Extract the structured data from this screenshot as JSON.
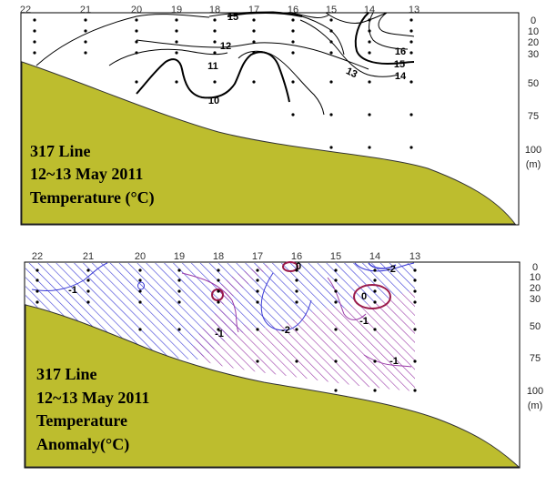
{
  "chart_data": [
    {
      "type": "contour",
      "panel": "temperature",
      "title_lines": [
        "317 Line",
        "12~13 May 2011",
        "Temperature (°C)"
      ],
      "stations": [
        "22",
        "21",
        "20",
        "19",
        "18",
        "17",
        "16",
        "15",
        "14",
        "13"
      ],
      "depth_ticks": [
        "0",
        "10",
        "20",
        "30",
        "50",
        "75",
        "100"
      ],
      "depth_unit": "(m)",
      "contour_labels": [
        {
          "value": "15",
          "lx": 17.5,
          "ly": 2
        },
        {
          "value": "12",
          "lx": 18.4,
          "ly": 20
        },
        {
          "value": "11",
          "lx": 18.7,
          "ly": 35
        },
        {
          "value": "10",
          "lx": 18.5,
          "ly": 68
        },
        {
          "value": "13",
          "lx": 14.8,
          "ly": 42
        },
        {
          "value": "14",
          "lx": 13.6,
          "ly": 48
        },
        {
          "value": "15",
          "lx": 13.6,
          "ly": 32
        },
        {
          "value": "16",
          "lx": 13.6,
          "ly": 17
        }
      ]
    },
    {
      "type": "contour",
      "panel": "temperature_anomaly",
      "title_lines": [
        "317 Line",
        "12~13 May 2011",
        "Temperature",
        "Anomaly(°C)"
      ],
      "stations": [
        "22",
        "21",
        "20",
        "19",
        "18",
        "17",
        "16",
        "15",
        "14",
        "13"
      ],
      "depth_ticks": [
        "0",
        "10",
        "20",
        "30",
        "50",
        "75",
        "100"
      ],
      "depth_unit": "(m)",
      "contour_labels": [
        {
          "value": "-1",
          "lx": 21.7,
          "ly": 26
        },
        {
          "value": "-1",
          "lx": 18.2,
          "ly": 62
        },
        {
          "value": "-2",
          "lx": 16.8,
          "ly": 52
        },
        {
          "value": "0",
          "lx": 16,
          "ly": 2
        },
        {
          "value": "-2",
          "lx": 13.9,
          "ly": 5
        },
        {
          "value": "0",
          "lx": 14.4,
          "ly": 30
        },
        {
          "value": "-1",
          "lx": 14.2,
          "ly": 47
        },
        {
          "value": "-1",
          "lx": 13.9,
          "ly": 82
        }
      ]
    }
  ]
}
